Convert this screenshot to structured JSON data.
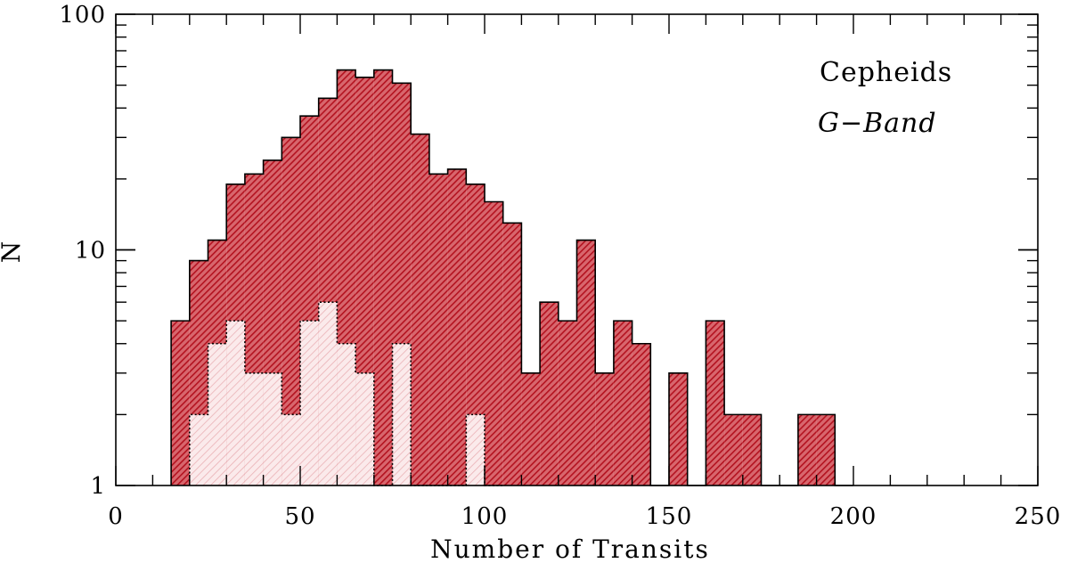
{
  "chart_data": {
    "type": "bar",
    "xlabel": "Number of Transits",
    "ylabel": "N",
    "xlim": [
      0,
      250
    ],
    "ylim": [
      1,
      100
    ],
    "yscale": "log",
    "bin_width": 5,
    "x_ticks": [
      "0",
      "50",
      "100",
      "150",
      "200",
      "250"
    ],
    "y_ticks": [
      "1",
      "10",
      "100"
    ],
    "annotations": [
      "Cepheids",
      "G−Band"
    ],
    "series": [
      {
        "fill": "#c0313a",
        "hatch": "dense diagonal",
        "line_style": "solid",
        "bin_starts": [
          15,
          20,
          25,
          30,
          35,
          40,
          45,
          50,
          55,
          60,
          65,
          70,
          75,
          80,
          85,
          90,
          95,
          100,
          105,
          110,
          115,
          120,
          125,
          130,
          135,
          140,
          145,
          150,
          155,
          160,
          165,
          170,
          175,
          180,
          185,
          190,
          195
        ],
        "counts": [
          5,
          9,
          11,
          19,
          21,
          24,
          30,
          37,
          44,
          58,
          54,
          58,
          51,
          31,
          21,
          22,
          19,
          16,
          13,
          3,
          6,
          5,
          11,
          3,
          5,
          4,
          1,
          3,
          1,
          5,
          2,
          2,
          1,
          1,
          2,
          2,
          1
        ]
      },
      {
        "fill": "#f7dcde",
        "hatch": "sparse diagonal",
        "line_style": "dotted",
        "bin_starts": [
          20,
          25,
          30,
          35,
          40,
          45,
          50,
          55,
          60,
          65,
          70,
          75,
          80,
          85,
          90,
          95,
          100
        ],
        "counts": [
          2,
          4,
          5,
          3,
          3,
          2,
          5,
          6,
          4,
          3,
          1,
          4,
          1,
          1,
          1,
          2,
          1
        ]
      }
    ]
  }
}
